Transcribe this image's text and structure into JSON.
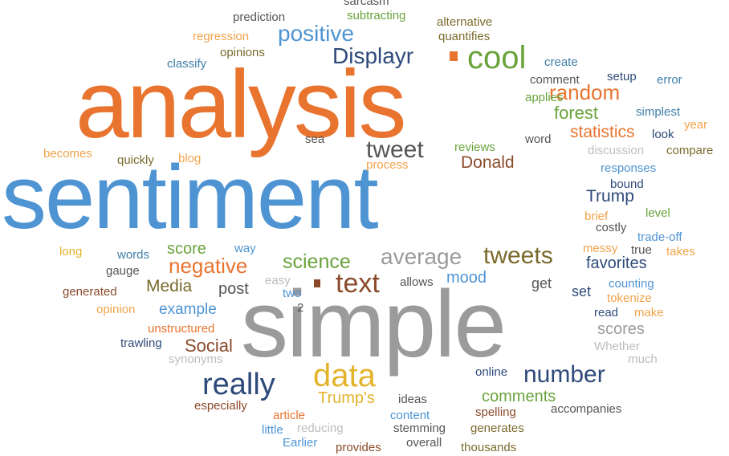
{
  "palette": {
    "orange": "#E8742F",
    "blue": "#4E94D3",
    "gray": "#9B9B9B",
    "gold": "#E3B32B",
    "green": "#6AA33C",
    "navy": "#2E4A7A",
    "brown": "#8A4A2A",
    "lightorange": "#F2A34B",
    "lightgray": "#BDBDBD",
    "olive": "#7A6A2B",
    "teal": "#3E7EA8",
    "darkgray": "#555555"
  },
  "words": [
    "analysis",
    "sentiment",
    "simple",
    "cool",
    "Displayr",
    "positive",
    "data",
    "really",
    "text",
    "tweet",
    "tweets",
    "random",
    "number",
    "negative",
    "average",
    "science",
    "forest",
    "statistics",
    "Donald",
    "Trump",
    "Media",
    "Social",
    "Trump's",
    "score",
    "example",
    "post",
    "mood",
    "favorites",
    "scores",
    "comments",
    "prediction",
    "sarcasm",
    "subtracting",
    "alternative",
    "quantifies",
    "regression",
    "opinions",
    "classify",
    "create",
    "comment",
    "setup",
    "error",
    "applies",
    "simplest",
    "year",
    "word",
    "look",
    "compare",
    "discussion",
    "sea",
    "reviews",
    "becomes",
    "quickly",
    "blog",
    "process",
    "responses",
    "bound",
    "brief",
    "level",
    "costly",
    "trade-off",
    "long",
    "words",
    "way",
    "messy",
    "true",
    "takes",
    "gauge",
    "easy",
    "allows",
    "get",
    "counting",
    "generated",
    "two",
    "set",
    "tokenize",
    "opinion",
    "2",
    "read",
    "make",
    "unstructured",
    "trawling",
    "Whether",
    "much",
    "synonyms",
    "online",
    "especially",
    "article",
    "ideas",
    "content",
    "spelling",
    "accompanies",
    "little",
    "reducing",
    "stemming",
    "generates",
    "Earlier",
    "provides",
    "overall",
    "thousands"
  ]
}
